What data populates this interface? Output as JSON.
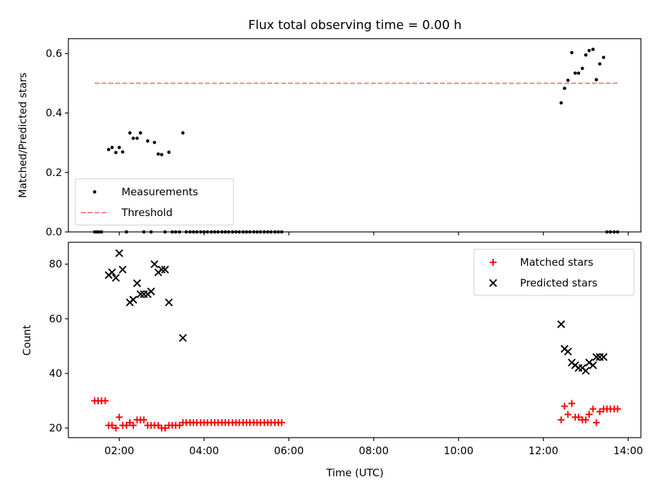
{
  "chart_data": [
    {
      "type": "scatter",
      "title": "Flux total observing time = 0.00 h",
      "xlabel": "",
      "ylabel": "Matched/Predicted stars",
      "xlim": [
        0.8,
        14.3
      ],
      "ylim": [
        0,
        0.65
      ],
      "yticks": [
        0.0,
        0.2,
        0.4,
        0.6
      ],
      "ytick_labels": [
        "0.0",
        "0.2",
        "0.4",
        "0.6"
      ],
      "legend_position": "lower-left",
      "grid": false,
      "series": [
        {
          "name": "Measurements",
          "marker": "dot",
          "color": "#000000",
          "x": [
            1.42,
            1.47,
            1.52,
            1.58,
            1.75,
            1.83,
            1.92,
            2.0,
            2.08,
            2.17,
            2.25,
            2.33,
            2.42,
            2.5,
            2.58,
            2.67,
            2.75,
            2.83,
            2.92,
            3.0,
            3.08,
            3.17,
            3.25,
            3.33,
            3.42,
            3.5,
            3.58,
            3.67,
            3.75,
            3.83,
            3.92,
            4.0,
            4.08,
            4.17,
            4.25,
            4.33,
            4.42,
            4.5,
            4.58,
            4.67,
            4.75,
            4.83,
            4.92,
            5.0,
            5.08,
            5.17,
            5.25,
            5.33,
            5.42,
            5.5,
            5.58,
            5.67,
            5.75,
            5.83,
            12.42,
            12.5,
            12.58,
            12.67,
            12.75,
            12.83,
            12.92,
            13.0,
            13.08,
            13.17,
            13.25,
            13.33,
            13.42,
            13.5,
            13.58,
            13.67,
            13.75
          ],
          "y": [
            0,
            0,
            0,
            0,
            0.277,
            0.284,
            0.267,
            0.284,
            0.269,
            0,
            0.333,
            0.315,
            0.315,
            0.333,
            0,
            0.306,
            0,
            0.301,
            0.262,
            0.26,
            0,
            0.268,
            0,
            0,
            0,
            0.333,
            0,
            0,
            0,
            0,
            0,
            0,
            0,
            0,
            0,
            0,
            0,
            0,
            0,
            0,
            0,
            0,
            0,
            0,
            0,
            0,
            0,
            0,
            0,
            0,
            0,
            0,
            0,
            0,
            0.434,
            0.483,
            0.51,
            0.603,
            0.534,
            0.534,
            0.55,
            0.595,
            0.61,
            0.614,
            0.512,
            0.565,
            0.587,
            0,
            0,
            0,
            0
          ]
        },
        {
          "name": "Threshold",
          "style": "dashed",
          "color": "#ff7f7f",
          "x": [
            1.42,
            13.75
          ],
          "y": [
            0.5,
            0.5
          ]
        }
      ]
    },
    {
      "type": "scatter",
      "title": "",
      "xlabel": "Time (UTC)",
      "ylabel": "Count",
      "xlim": [
        0.8,
        14.3
      ],
      "ylim": [
        16.5,
        88
      ],
      "xticks": [
        2,
        4,
        6,
        8,
        10,
        12,
        14
      ],
      "xtick_labels": [
        "02:00",
        "04:00",
        "06:00",
        "08:00",
        "10:00",
        "12:00",
        "14:00"
      ],
      "yticks": [
        20,
        40,
        60,
        80
      ],
      "ytick_labels": [
        "20",
        "40",
        "60",
        "80"
      ],
      "legend_position": "upper-right",
      "grid": false,
      "series": [
        {
          "name": "Matched stars",
          "marker": "plus",
          "color": "#ff0000",
          "x": [
            1.42,
            1.5,
            1.58,
            1.67,
            1.75,
            1.83,
            1.92,
            2.0,
            2.08,
            2.17,
            2.25,
            2.33,
            2.42,
            2.5,
            2.58,
            2.67,
            2.75,
            2.83,
            2.92,
            3.0,
            3.08,
            3.17,
            3.25,
            3.33,
            3.42,
            3.5,
            3.58,
            3.67,
            3.75,
            3.83,
            3.92,
            4.0,
            4.08,
            4.17,
            4.25,
            4.33,
            4.42,
            4.5,
            4.58,
            4.67,
            4.75,
            4.83,
            4.92,
            5.0,
            5.08,
            5.17,
            5.25,
            5.33,
            5.42,
            5.5,
            5.58,
            5.67,
            5.75,
            5.83,
            12.42,
            12.5,
            12.58,
            12.67,
            12.75,
            12.83,
            12.92,
            13.0,
            13.08,
            13.17,
            13.25,
            13.33,
            13.42,
            13.5,
            13.58,
            13.67,
            13.75
          ],
          "y": [
            30,
            30,
            30,
            30,
            21,
            21,
            20,
            24,
            21,
            21,
            22,
            21,
            23,
            23,
            23,
            21,
            21,
            21,
            21,
            20,
            20,
            21,
            21,
            21,
            21,
            22,
            22,
            22,
            22,
            22,
            22,
            22,
            22,
            22,
            22,
            22,
            22,
            22,
            22,
            22,
            22,
            22,
            22,
            22,
            22,
            22,
            22,
            22,
            22,
            22,
            22,
            22,
            22,
            22,
            23,
            28,
            25,
            29,
            24,
            24,
            23,
            23,
            25,
            27,
            22,
            26,
            27,
            27,
            27,
            27,
            27
          ]
        },
        {
          "name": "Predicted stars",
          "marker": "x",
          "color": "#000000",
          "x": [
            1.75,
            1.83,
            1.92,
            2.0,
            2.08,
            2.25,
            2.33,
            2.42,
            2.5,
            2.58,
            2.67,
            2.75,
            2.83,
            2.92,
            3.0,
            3.08,
            3.17,
            3.5,
            12.42,
            12.5,
            12.58,
            12.67,
            12.75,
            12.83,
            12.92,
            13.0,
            13.08,
            13.17,
            13.25,
            13.33,
            13.42
          ],
          "y": [
            76,
            77,
            75,
            84,
            78,
            66,
            67,
            73,
            69,
            69,
            69,
            70,
            80,
            77,
            78,
            78,
            66,
            53,
            58,
            49,
            48,
            44,
            43,
            42,
            42,
            41,
            44,
            43,
            46,
            46,
            46
          ]
        }
      ]
    }
  ]
}
